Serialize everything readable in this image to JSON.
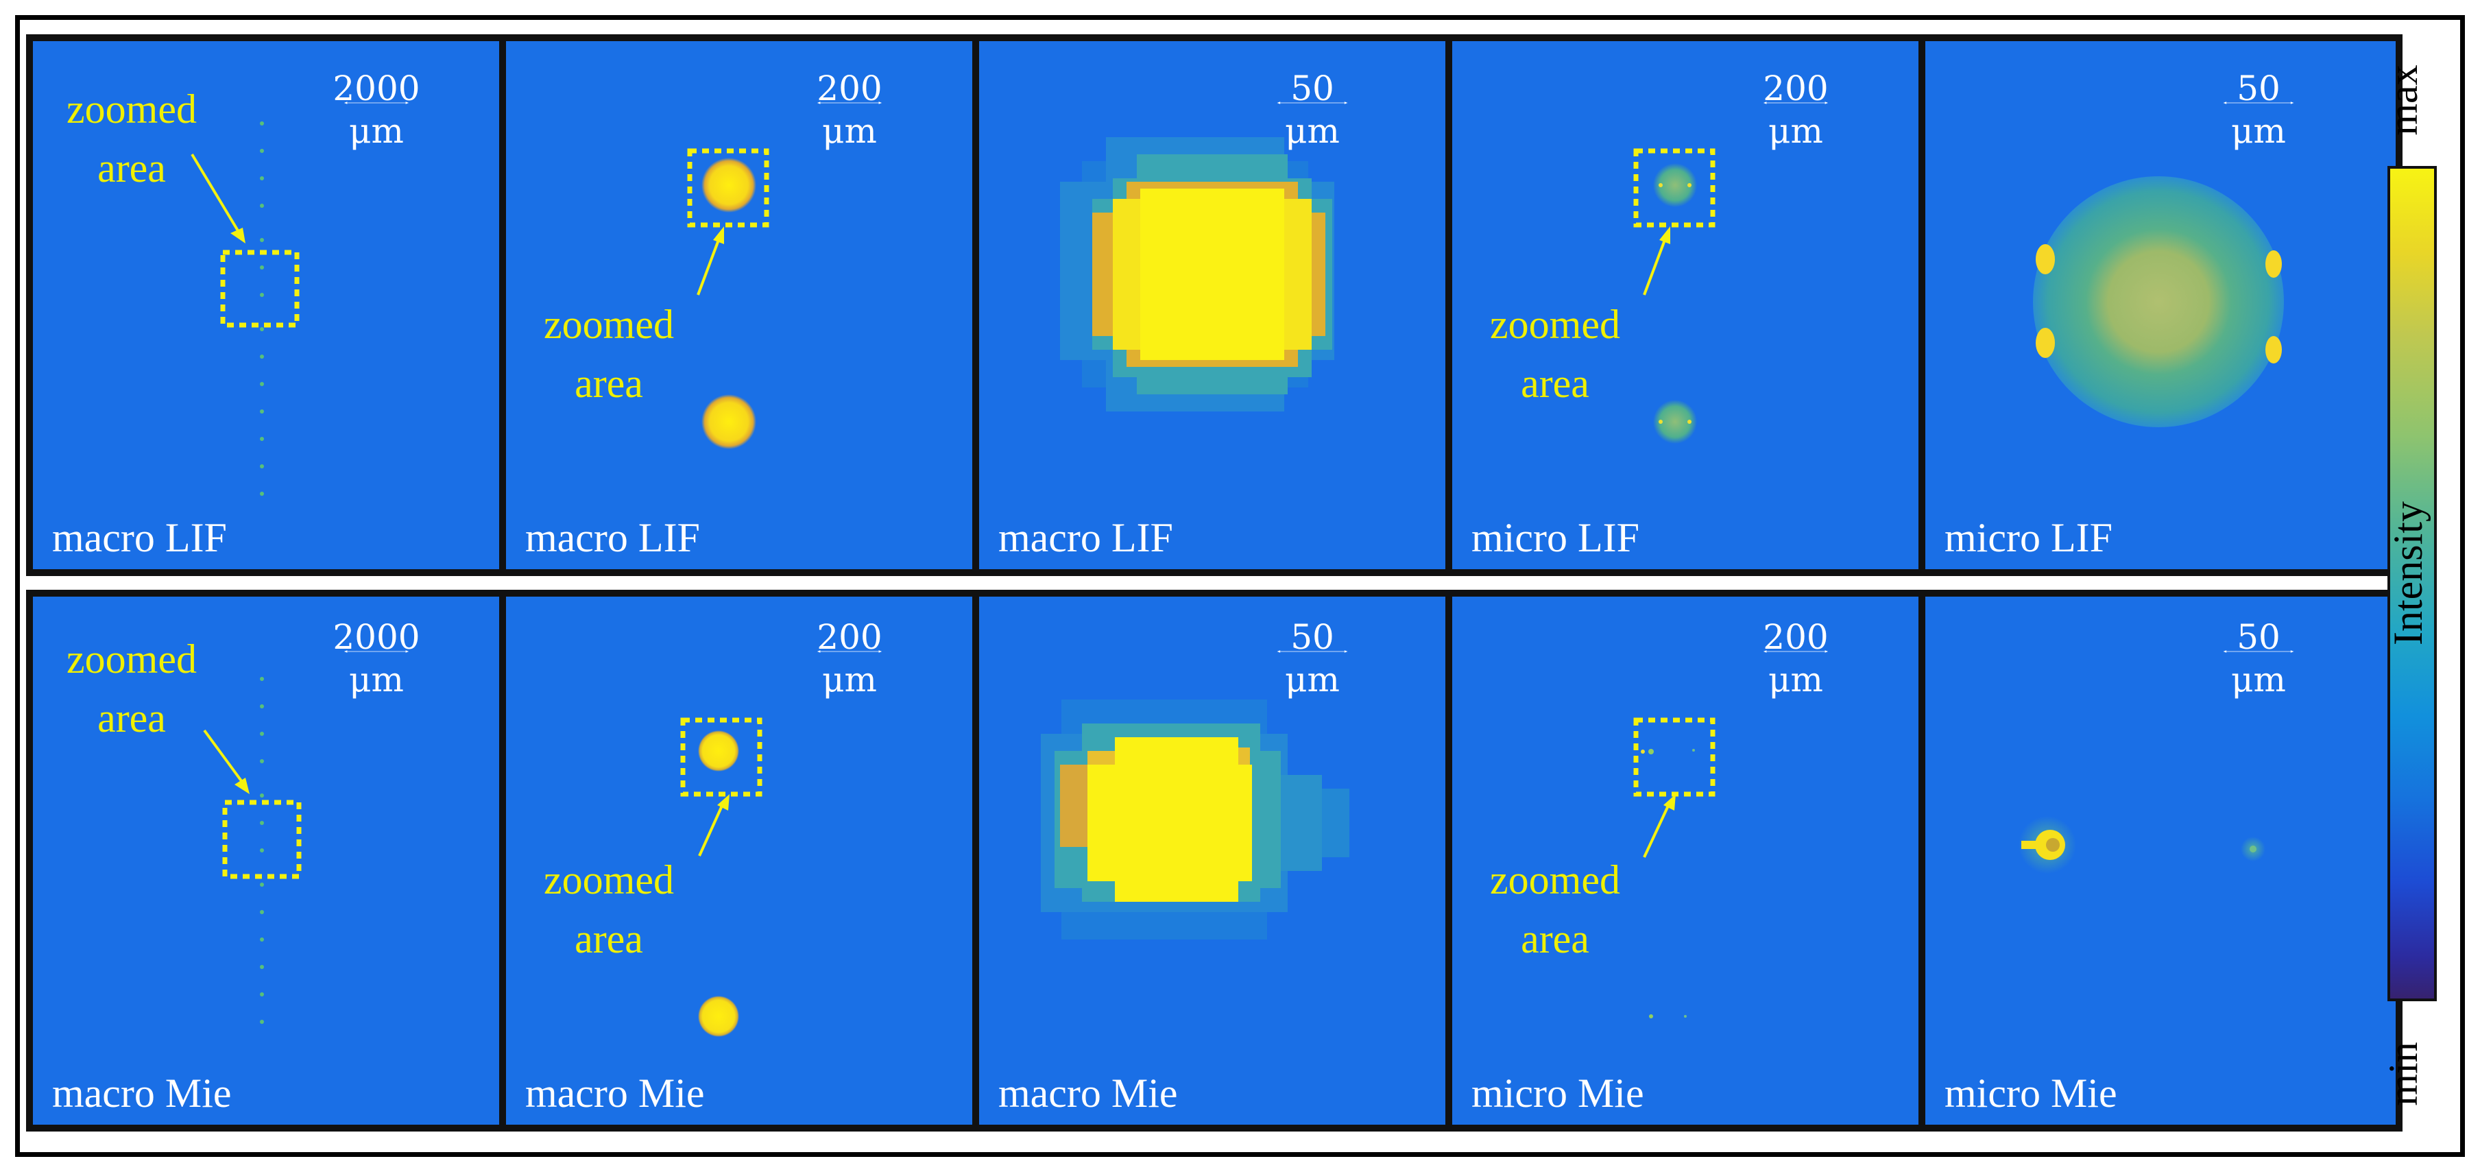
{
  "figure": {
    "rows": [
      {
        "panels": [
          {
            "label": "macro LIF",
            "scale_value": "2000",
            "scale_unit": "μm",
            "zoom_label_1": "zoomed",
            "zoom_label_2": "area"
          },
          {
            "label": "macro LIF",
            "scale_value": "200",
            "scale_unit": "μm",
            "zoom_label_1": "zoomed",
            "zoom_label_2": "area"
          },
          {
            "label": "macro LIF",
            "scale_value": "50",
            "scale_unit": "μm"
          },
          {
            "label": "micro LIF",
            "scale_value": "200",
            "scale_unit": "μm",
            "zoom_label_1": "zoomed",
            "zoom_label_2": "area"
          },
          {
            "label": "micro LIF",
            "scale_value": "50",
            "scale_unit": "μm"
          }
        ]
      },
      {
        "panels": [
          {
            "label": "macro Mie",
            "scale_value": "2000",
            "scale_unit": "μm",
            "zoom_label_1": "zoomed",
            "zoom_label_2": "area"
          },
          {
            "label": "macro Mie",
            "scale_value": "200",
            "scale_unit": "μm",
            "zoom_label_1": "zoomed",
            "zoom_label_2": "area"
          },
          {
            "label": "macro Mie",
            "scale_value": "50",
            "scale_unit": "μm"
          },
          {
            "label": "micro Mie",
            "scale_value": "200",
            "scale_unit": "μm",
            "zoom_label_1": "zoomed",
            "zoom_label_2": "area"
          },
          {
            "label": "micro Mie",
            "scale_value": "50",
            "scale_unit": "μm"
          }
        ]
      }
    ],
    "colorbar": {
      "max_label": "max",
      "min_label": "min",
      "title": "Intensity"
    }
  },
  "colors": {
    "background_blue": "#1a6ee6",
    "highlight_yellow": "#f5f20e",
    "frame": "#000000"
  }
}
